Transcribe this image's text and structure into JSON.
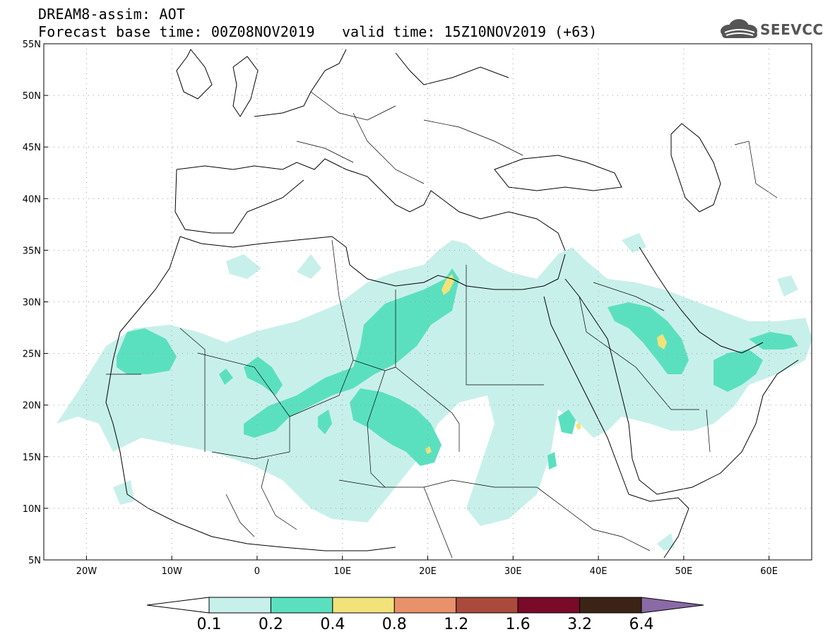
{
  "header": {
    "title": "DREAM8-assim: AOT",
    "base_time": "Forecast base time: 00Z08NOV2019",
    "valid_time": "valid time: 15Z10NOV2019 (+63)"
  },
  "logo": {
    "text": "SEEVCCC",
    "icon": "cloud-logo-icon"
  },
  "map": {
    "lat_range": [
      5,
      55
    ],
    "lon_range": [
      -25,
      65
    ],
    "lat_ticks": [
      "55N",
      "50N",
      "45N",
      "40N",
      "35N",
      "30N",
      "25N",
      "20N",
      "15N",
      "10N",
      "5N"
    ],
    "lat_tick_values": [
      55,
      50,
      45,
      40,
      35,
      30,
      25,
      20,
      15,
      10,
      5
    ],
    "lon_ticks": [
      "20W",
      "10W",
      "0",
      "10E",
      "20E",
      "30E",
      "40E",
      "50E",
      "60E"
    ],
    "lon_tick_values": [
      -20,
      -10,
      0,
      10,
      20,
      30,
      40,
      50,
      60
    ]
  },
  "legend": {
    "labels": [
      "0.1",
      "0.2",
      "0.4",
      "0.8",
      "1.2",
      "1.6",
      "3.2",
      "6.4"
    ],
    "colors": [
      "#ffffff",
      "#c8f0ea",
      "#5be0bf",
      "#f2e27a",
      "#e8916b",
      "#aa4a3c",
      "#7a0a2a",
      "#3b2415",
      "#8a6aa6"
    ]
  }
}
